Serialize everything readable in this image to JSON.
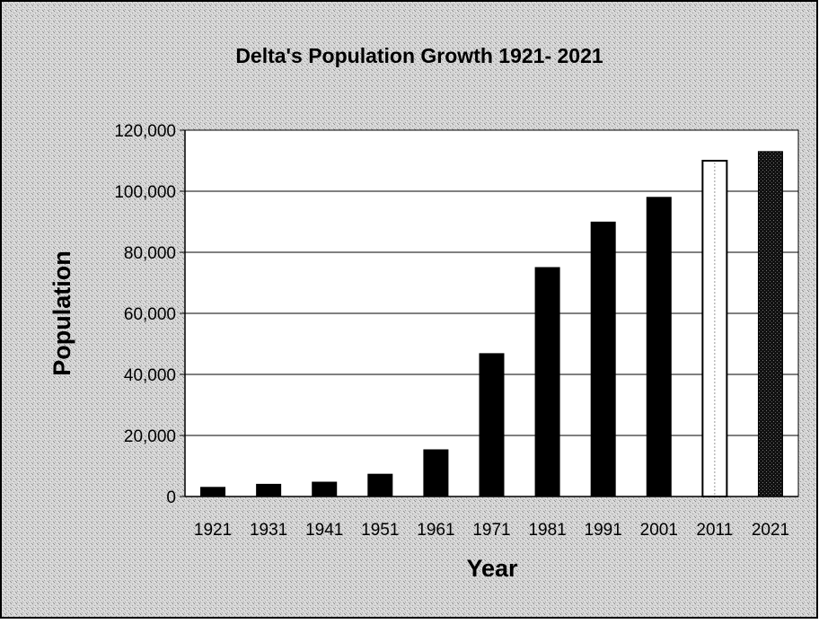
{
  "chart_data": {
    "type": "bar",
    "title": "Delta's Population Growth 1921- 2021",
    "xlabel": "Year",
    "ylabel": "Population",
    "categories": [
      "1921",
      "1931",
      "1941",
      "1951",
      "1961",
      "1971",
      "1981",
      "1991",
      "2001",
      "2011",
      "2021"
    ],
    "values": [
      3000,
      4000,
      4700,
      7300,
      15300,
      46800,
      75000,
      89900,
      98000,
      110000,
      113000
    ],
    "ylim": [
      0,
      120000
    ],
    "yticks": [
      0,
      20000,
      40000,
      60000,
      80000,
      100000,
      120000
    ],
    "ytick_labels": [
      "0",
      "20,000",
      "40,000",
      "60,000",
      "80,000",
      "100,000",
      "120,000"
    ],
    "grid": true,
    "legend": "none",
    "bar_styles": [
      "solid",
      "solid",
      "solid",
      "solid",
      "solid",
      "solid",
      "solid",
      "solid",
      "solid",
      "hollow",
      "dotted"
    ],
    "colors": {
      "bar": "#000000",
      "hollow_fill": "#ffffff",
      "plot_background": "#ffffff",
      "background": "#cfcfcf",
      "grid": "#000000"
    }
  }
}
